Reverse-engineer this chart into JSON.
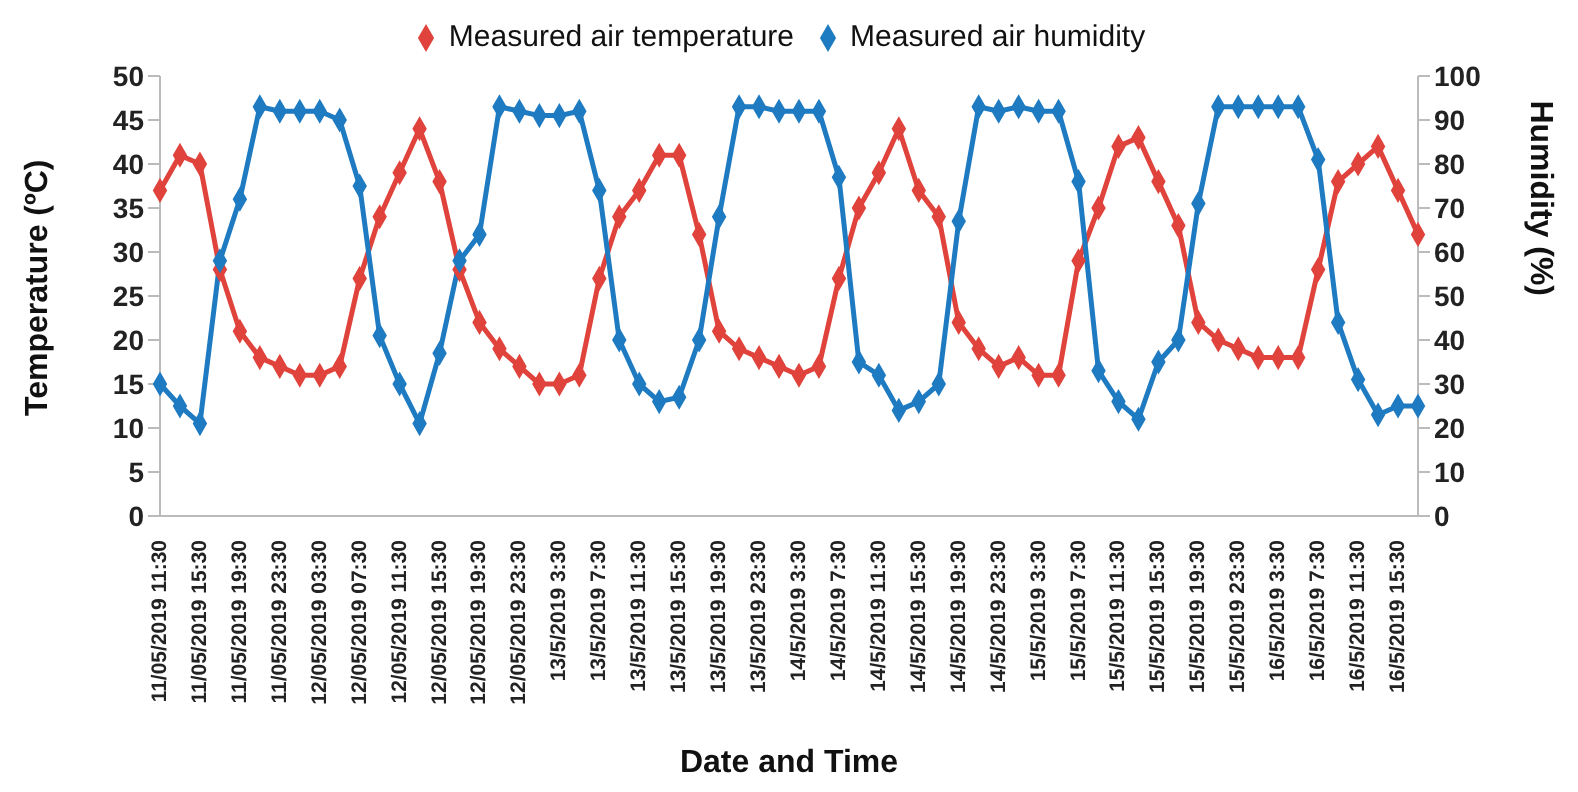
{
  "chart_data": {
    "type": "line",
    "xlabel": "Date and Time",
    "ylabel": "Temperature (ºC)",
    "y2label": "Humidity  (%)",
    "categories": [
      "11/05/2019 11:30",
      null,
      "11/05/2019 15:30",
      null,
      "11/05/2019 19:30",
      null,
      "11/05/2019 23:30",
      null,
      "12/05/2019 03:30",
      null,
      "12/05/2019 07:30",
      null,
      "12/05/2019 11:30",
      null,
      "12/05/2019 15:30",
      null,
      "12/05/2019 19:30",
      null,
      "12/05/2019 23:30",
      null,
      "13/5/2019 3:30",
      null,
      "13/5/2019 7:30",
      null,
      "13/5/2019 11:30",
      null,
      "13/5/2019 15:30",
      null,
      "13/5/2019 19:30",
      null,
      "13/5/2019 23:30",
      null,
      "14/5/2019 3:30",
      null,
      "14/5/2019 7:30",
      null,
      "14/5/2019 11:30",
      null,
      "14/5/2019 15:30",
      null,
      "14/5/2019 19:30",
      null,
      "14/5/2019 23:30",
      null,
      "15/5/2019 3:30",
      null,
      "15/5/2019 7:30",
      null,
      "15/5/2019 11:30",
      null,
      "15/5/2019 15:30",
      null,
      "15/5/2019 19:30",
      null,
      "15/5/2019 23:30",
      null,
      "16/5/2019 3:30",
      null,
      "16/5/2019 7:30",
      null,
      "16/5/2019 11:30",
      null,
      "16/5/2019 15:30",
      null
    ],
    "series": [
      {
        "name": "Measured air temperature",
        "color": "#e0433c",
        "values": [
          37,
          41,
          40,
          28,
          21,
          18,
          17,
          16,
          16,
          17,
          27,
          34,
          39,
          44,
          38,
          28,
          22,
          19,
          17,
          15,
          15,
          16,
          27,
          34,
          37,
          41,
          41,
          32,
          21,
          19,
          18,
          17,
          16,
          17,
          27,
          35,
          39,
          44,
          37,
          34,
          22,
          19,
          17,
          18,
          16,
          16,
          29,
          35,
          42,
          43,
          38,
          33,
          22,
          20,
          19,
          18,
          18,
          18,
          28,
          38,
          40,
          42,
          37,
          32
        ]
      },
      {
        "name": "Measured air humidity",
        "color": "#1f7bc1",
        "axis": "y2",
        "values": [
          30,
          25,
          21,
          58,
          72,
          93,
          92,
          92,
          92,
          90,
          75,
          41,
          30,
          21,
          37,
          58,
          64,
          93,
          92,
          91,
          91,
          92,
          74,
          40,
          30,
          26,
          27,
          40,
          68,
          93,
          93,
          92,
          92,
          92,
          77,
          35,
          32,
          24,
          26,
          30,
          67,
          93,
          92,
          93,
          92,
          92,
          76,
          33,
          26,
          22,
          35,
          40,
          71,
          93,
          93,
          93,
          93,
          93,
          81,
          44,
          31,
          23,
          25,
          25
        ]
      }
    ],
    "ylim": [
      0,
      50
    ],
    "yticks": [
      0,
      5,
      10,
      15,
      20,
      25,
      30,
      35,
      40,
      45,
      50
    ],
    "y2lim": [
      0,
      100
    ],
    "y2ticks": [
      0,
      10,
      20,
      30,
      40,
      50,
      60,
      70,
      80,
      90,
      100
    ],
    "marker": "diamond",
    "line_style": "solid",
    "legend": "top",
    "grid": false
  }
}
